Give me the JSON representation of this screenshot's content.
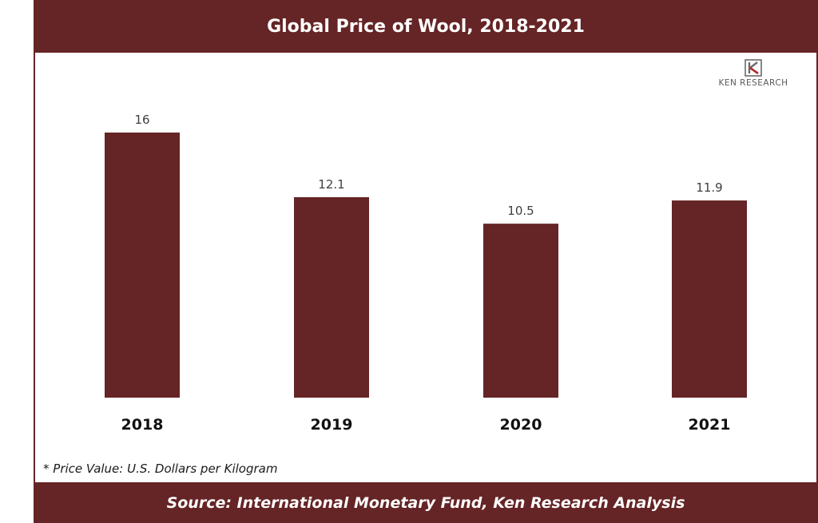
{
  "header": {
    "title": "Global Price of Wool, 2018-2021"
  },
  "logo": {
    "text": "KEN RESEARCH",
    "icon": "ken-research-k-icon"
  },
  "footnote": "* Price Value: U.S. Dollars per Kilogram",
  "footer": {
    "source": "Source:  International Monetary Fund, Ken Research Analysis"
  },
  "colors": {
    "brand": "#652425",
    "bar": "#652425",
    "background": "#ffffff"
  },
  "chart_data": {
    "type": "bar",
    "categories": [
      "2018",
      "2019",
      "2020",
      "2021"
    ],
    "values": [
      16,
      12.1,
      10.5,
      11.9
    ],
    "value_labels": [
      "16",
      "12.1",
      "10.5",
      "11.9"
    ],
    "ylim": [
      0,
      16
    ],
    "grid": false,
    "legend": "none"
  }
}
